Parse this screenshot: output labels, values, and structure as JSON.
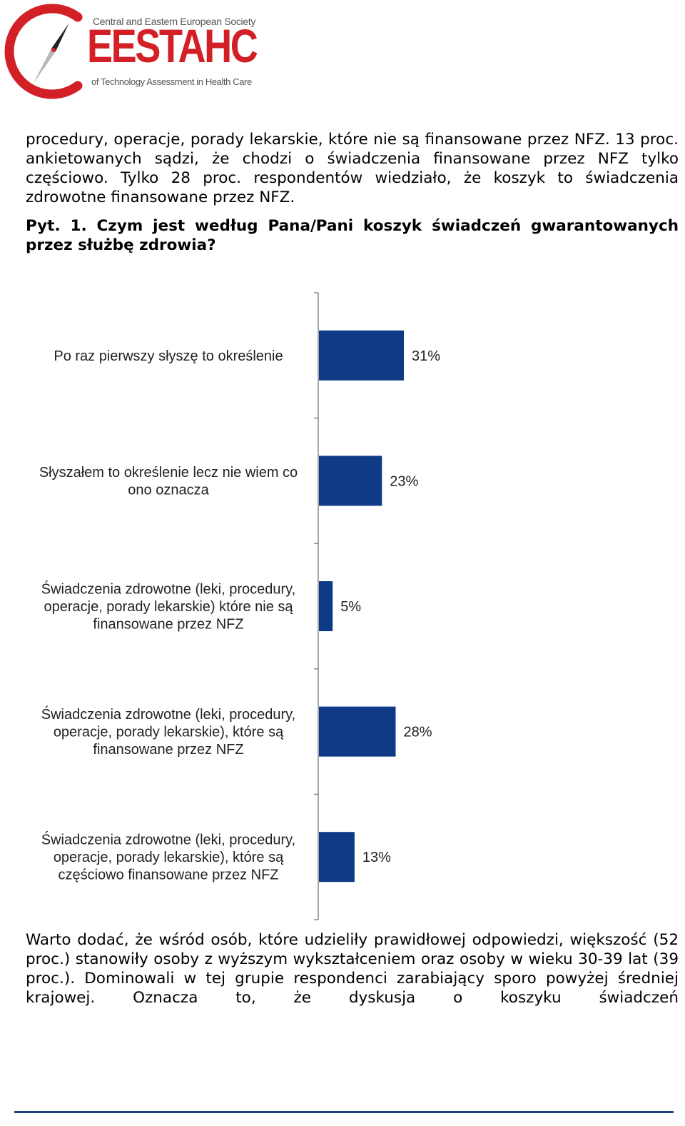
{
  "header": {
    "logo": {
      "brand": "EESTAHC",
      "tagline_top": "Central and Eastern European Society",
      "tagline_bottom": "of Technology Assessment in Health Care",
      "accent_color": "#d31f26"
    }
  },
  "body": {
    "paragraph_1": "procedury, operacje, porady lekarskie, które nie są finansowane przez NFZ. 13 proc. ankietowanych sądzi, że chodzi o świadczenia finansowane przez NFZ tylko częściowo. Tylko 28 proc. respondentów wiedziało, że koszyk to świadczenia zdrowotne finansowane przez NFZ.",
    "question": "Pyt. 1. Czym jest według Pana/Pani koszyk świadczeń gwarantowanych przez służbę zdrowia?",
    "paragraph_2": "Warto dodać, że wśród osób, które udzieliły prawidłowej odpowiedzi, większość (52 proc.) stanowiły osoby z wyższym wykształceniem oraz osoby w wieku 30-39 lat (39 proc.). Dominowali w tej grupie respondenci zarabiający sporo powyżej średniej krajowej. Oznacza to, że dyskusja o koszyku świadczeń"
  },
  "chart_data": {
    "type": "bar",
    "orientation": "horizontal",
    "title": "",
    "xlabel": "",
    "ylabel": "",
    "xlim": [
      0,
      100
    ],
    "grid": false,
    "bar_color": "#0f3a86",
    "categories": [
      [
        "Po raz pierwszy słyszę to określenie"
      ],
      [
        "Słyszałem to określenie lecz nie wiem co",
        "ono oznacza"
      ],
      [
        "Świadczenia zdrowotne (leki, procedury,",
        "operacje, porady lekarskie) które nie są",
        "finansowane przez NFZ"
      ],
      [
        "Świadczenia zdrowotne (leki, procedury,",
        "operacje, porady lekarskie), które są",
        "finansowane przez NFZ"
      ],
      [
        "Świadczenia zdrowotne (leki, procedury,",
        "operacje, porady lekarskie), które są",
        "częściowo finansowane przez NFZ"
      ]
    ],
    "values": [
      31,
      23,
      5,
      28,
      13
    ],
    "value_labels": [
      "31%",
      "23%",
      "5%",
      "28%",
      "13%"
    ]
  }
}
